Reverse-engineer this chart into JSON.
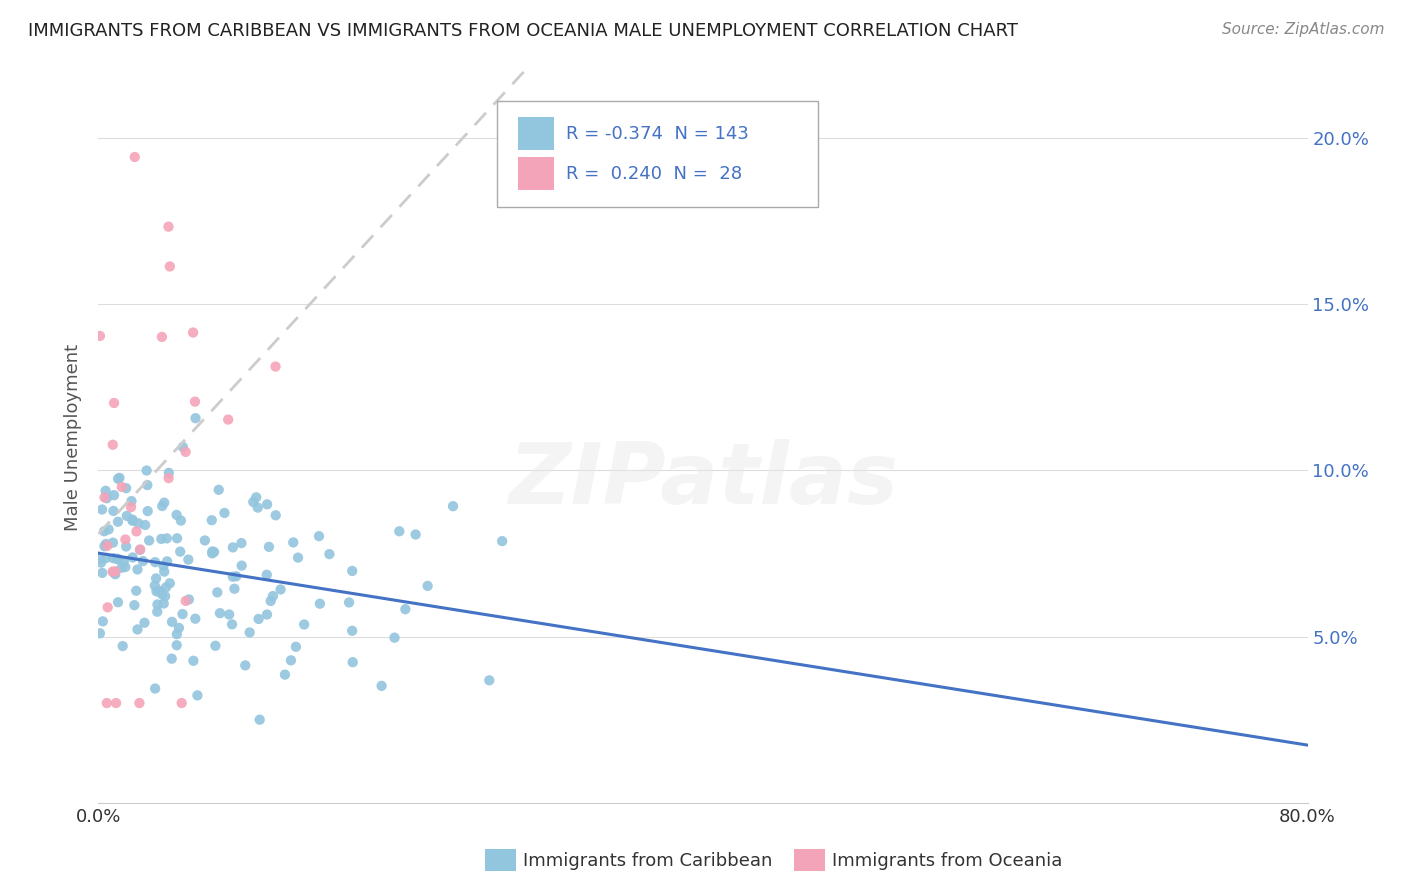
{
  "title": "IMMIGRANTS FROM CARIBBEAN VS IMMIGRANTS FROM OCEANIA MALE UNEMPLOYMENT CORRELATION CHART",
  "source": "Source: ZipAtlas.com",
  "ylabel": "Male Unemployment",
  "xlim": [
    0.0,
    0.8
  ],
  "ylim": [
    0.0,
    0.22
  ],
  "yticks": [
    0.05,
    0.1,
    0.15,
    0.2
  ],
  "yticklabels": [
    "5.0%",
    "10.0%",
    "15.0%",
    "20.0%"
  ],
  "caribbean_color": "#92c5de",
  "oceania_color": "#f4a4b8",
  "caribbean_line_color": "#4472c4",
  "oceania_line_color": "#cccccc",
  "caribbean_R": -0.374,
  "caribbean_N": 143,
  "oceania_R": 0.24,
  "oceania_N": 28,
  "legend_label_caribbean": "Immigrants from Caribbean",
  "legend_label_oceania": "Immigrants from Oceania",
  "background_color": "#ffffff",
  "grid_color": "#dddddd",
  "watermark": "ZIPatlas",
  "title_fontsize": 13,
  "axis_fontsize": 13,
  "legend_fontsize": 13
}
